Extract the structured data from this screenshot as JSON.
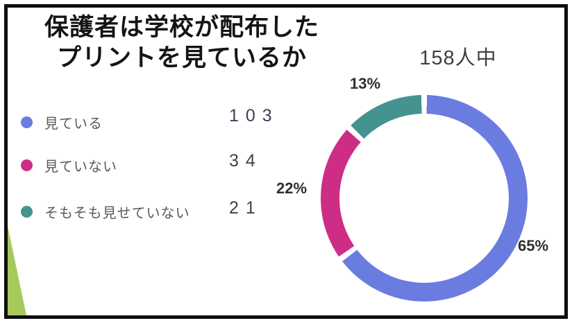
{
  "title": {
    "line1": "保護者は学校が配布した",
    "line2": "プリントを見ているか"
  },
  "total_label": "158人中",
  "legend": {
    "items": [
      {
        "label": "見ている",
        "value": "103",
        "color": "#6B7CE0"
      },
      {
        "label": "見ていない",
        "value": "34",
        "color": "#CE2D86"
      },
      {
        "label": "そもそも見せていない",
        "value": "21",
        "color": "#449390"
      }
    ]
  },
  "chart_data": {
    "type": "pie",
    "subtype": "donut",
    "title": "保護者は学校が配布したプリントを見ているか",
    "total": 158,
    "total_label": "158人中",
    "categories": [
      "見ている",
      "見ていない",
      "そもそも見せていない"
    ],
    "counts": [
      103,
      34,
      21
    ],
    "values": [
      65,
      22,
      13
    ],
    "segments": [
      {
        "name": "見ている",
        "count": 103,
        "percent": 65,
        "percent_label": "65%",
        "color": "#6B7CE0"
      },
      {
        "name": "見ていない",
        "count": 34,
        "percent": 22,
        "percent_label": "22%",
        "color": "#CE2D86"
      },
      {
        "name": "そもそも見せていない",
        "count": 21,
        "percent": 13,
        "percent_label": "13%",
        "color": "#449390"
      }
    ],
    "start_angle_deg": 0,
    "direction": "clockwise",
    "legend_position": "left",
    "segment_separator_color": "#ffffff"
  },
  "decor": {
    "triangle_color": "#A7C95B",
    "frame_border_color": "#0e0e0e"
  }
}
